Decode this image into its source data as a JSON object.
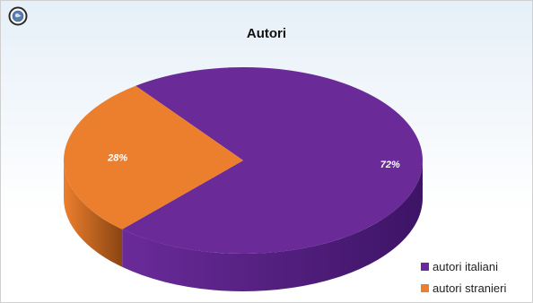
{
  "chart_data": {
    "type": "pie",
    "title": "Autori",
    "categories": [
      "autori italiani",
      "autori stranieri"
    ],
    "values": [
      72,
      28
    ],
    "data_labels": [
      "72%",
      "28%"
    ],
    "colors": [
      "#6a2b99",
      "#ec7f2e"
    ],
    "dark_colors": [
      "#3d1466",
      "#8a4512"
    ],
    "legend_position": "bottom-right",
    "style": "3d"
  },
  "corner_icon": "globe-icon"
}
